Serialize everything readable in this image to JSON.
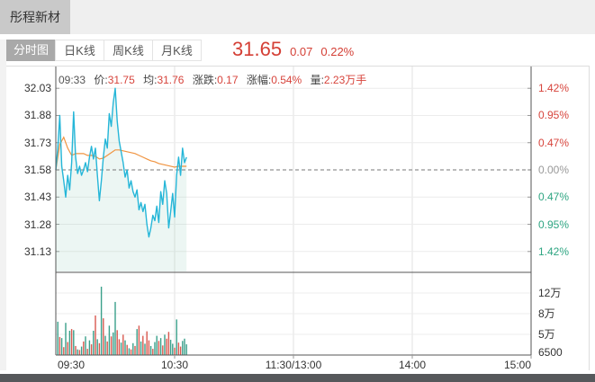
{
  "header": {
    "stock_name": "彤程新材"
  },
  "tabs": [
    {
      "label": "分时图",
      "active": true
    },
    {
      "label": "日K线",
      "active": false
    },
    {
      "label": "周K线",
      "active": false
    },
    {
      "label": "月K线",
      "active": false
    }
  ],
  "quote": {
    "price": "31.65",
    "change": "0.07",
    "change_percent": "0.22%"
  },
  "info_bar": {
    "time": "09:33",
    "price_label": "价:",
    "price": "31.75",
    "avg_label": "均:",
    "avg": "31.76",
    "change_label": "涨跌:",
    "change": "0.17",
    "pct_label": "涨幅:",
    "pct": "0.54%",
    "volume_label": "量:",
    "volume": "2.23万手"
  },
  "colors": {
    "up_red": "#d7443c",
    "down_green": "#2ea582",
    "neutral_gray": "#999999",
    "quote_red": "#d43f35",
    "price_line_cyan": "#25b6d8",
    "avg_line_orange": "#f09441",
    "area_fill": "rgba(137,200,178,0.16)",
    "volume_green": "#3aa08a",
    "volume_red": "#d9594f"
  },
  "chart_data": {
    "type": "line",
    "title": "分时图 intraday price with average line and volume",
    "prev_close": 31.58,
    "last_price": 31.65,
    "price_axis": [
      "32.03",
      "31.88",
      "31.73",
      "31.58",
      "31.43",
      "31.28",
      "31.13"
    ],
    "pct_axis": [
      {
        "label": "1.42%",
        "color": "#d7443c"
      },
      {
        "label": "0.95%",
        "color": "#d7443c"
      },
      {
        "label": "0.47%",
        "color": "#d7443c"
      },
      {
        "label": "0.00%",
        "color": "#999999"
      },
      {
        "label": "0.47%",
        "color": "#2ea582"
      },
      {
        "label": "0.95%",
        "color": "#2ea582"
      },
      {
        "label": "1.42%",
        "color": "#2ea582"
      }
    ],
    "volume_axis": [
      "12万",
      "8万",
      "5万",
      "6500"
    ],
    "volume_unit": "万手",
    "x_labels": [
      "09:30",
      "10:30",
      "11:30/13:00",
      "14:00",
      "15:00"
    ],
    "x_label_minutes": [
      0,
      60,
      120,
      180,
      240
    ],
    "grid_minutes": [
      60,
      120,
      180
    ],
    "x_range_minutes": 240,
    "price_ylim": [
      31.015,
      32.15
    ],
    "volume_ylim": [
      0,
      14
    ],
    "price": {
      "x": [
        0,
        1,
        2,
        3,
        4,
        5,
        6,
        7,
        8,
        9,
        10,
        11,
        12,
        13,
        14,
        15,
        16,
        17,
        18,
        19,
        20,
        21,
        22,
        23,
        24,
        25,
        26,
        27,
        28,
        29,
        30,
        31,
        32,
        33,
        34,
        35,
        36,
        37,
        38,
        39,
        40,
        41,
        42,
        43,
        44,
        45,
        46,
        47,
        48,
        49,
        50,
        51,
        52,
        53,
        54,
        55,
        56,
        57,
        58,
        59,
        60,
        61,
        62,
        63,
        64,
        65,
        66
      ],
      "y": [
        31.58,
        31.7,
        31.88,
        31.6,
        31.52,
        31.43,
        31.55,
        31.47,
        31.62,
        31.9,
        31.65,
        31.56,
        31.6,
        31.55,
        31.58,
        31.62,
        31.57,
        31.65,
        31.71,
        31.64,
        31.7,
        31.55,
        31.41,
        31.52,
        31.65,
        31.75,
        31.7,
        31.89,
        31.82,
        31.95,
        32.03,
        31.85,
        31.74,
        31.68,
        31.62,
        31.54,
        31.58,
        31.48,
        31.52,
        31.46,
        31.43,
        31.47,
        31.36,
        31.4,
        31.35,
        31.39,
        31.28,
        31.21,
        31.26,
        31.33,
        31.3,
        31.38,
        31.29,
        31.46,
        31.39,
        31.52,
        31.45,
        31.26,
        31.35,
        31.45,
        31.32,
        31.55,
        31.65,
        31.55,
        31.7,
        31.62,
        31.65
      ]
    },
    "avg": {
      "x": [
        0,
        2,
        4,
        6,
        8,
        10,
        12,
        14,
        16,
        18,
        20,
        22,
        24,
        26,
        28,
        30,
        32,
        34,
        36,
        38,
        40,
        42,
        44,
        46,
        48,
        50,
        52,
        54,
        56,
        58,
        60,
        62,
        64,
        66
      ],
      "y": [
        31.58,
        31.72,
        31.76,
        31.7,
        31.66,
        31.67,
        31.67,
        31.67,
        31.66,
        31.66,
        31.655,
        31.64,
        31.645,
        31.66,
        31.675,
        31.69,
        31.69,
        31.685,
        31.68,
        31.675,
        31.67,
        31.66,
        31.65,
        31.64,
        31.63,
        31.625,
        31.615,
        31.61,
        31.605,
        31.6,
        31.595,
        31.6,
        31.6,
        31.6
      ]
    },
    "volume": {
      "x": [
        1,
        2,
        3,
        4,
        5,
        6,
        7,
        8,
        9,
        10,
        11,
        12,
        13,
        14,
        15,
        16,
        17,
        18,
        19,
        20,
        21,
        22,
        23,
        24,
        25,
        26,
        27,
        28,
        29,
        30,
        31,
        32,
        33,
        34,
        35,
        36,
        37,
        38,
        39,
        40,
        41,
        42,
        43,
        44,
        45,
        46,
        47,
        48,
        49,
        50,
        51,
        52,
        53,
        54,
        55,
        56,
        57,
        58,
        59,
        60,
        61,
        62,
        63,
        64,
        65,
        66
      ],
      "values": [
        5.9,
        3.2,
        3.0,
        1.4,
        5.7,
        2.3,
        4.3,
        4.6,
        4.4,
        1.6,
        1.0,
        0.9,
        1.5,
        2.4,
        3.3,
        1.1,
        2.6,
        1.9,
        4.3,
        7.0,
        2.8,
        2.1,
        12.1,
        6.5,
        3.4,
        2.4,
        5.2,
        3.3,
        4.0,
        9.4,
        4.4,
        2.8,
        2.2,
        3.6,
        2.6,
        1.8,
        1.2,
        1.0,
        2.1,
        1.6,
        4.6,
        5.2,
        2.4,
        3.4,
        2.0,
        4.2,
        2.6,
        1.6,
        1.1,
        2.3,
        3.4,
        2.5,
        3.0,
        1.7,
        3.6,
        2.9,
        4.1,
        2.7,
        2.0,
        1.3,
        6.3,
        2.2,
        1.5,
        2.5,
        2.9,
        1.9
      ],
      "colors": [
        "g",
        "r",
        "g",
        "r",
        "g",
        "r",
        "g",
        "r",
        "g",
        "r",
        "g",
        "r",
        "g",
        "r",
        "g",
        "r",
        "g",
        "r",
        "g",
        "r",
        "g",
        "r",
        "g",
        "r",
        "g",
        "r",
        "g",
        "r",
        "g",
        "g",
        "r",
        "r",
        "g",
        "r",
        "g",
        "r",
        "g",
        "r",
        "g",
        "r",
        "g",
        "r",
        "g",
        "r",
        "g",
        "r",
        "r",
        "g",
        "r",
        "g",
        "g",
        "r",
        "g",
        "r",
        "g",
        "r",
        "r",
        "g",
        "g",
        "r",
        "g",
        "r",
        "r",
        "g",
        "g",
        "g"
      ]
    }
  }
}
